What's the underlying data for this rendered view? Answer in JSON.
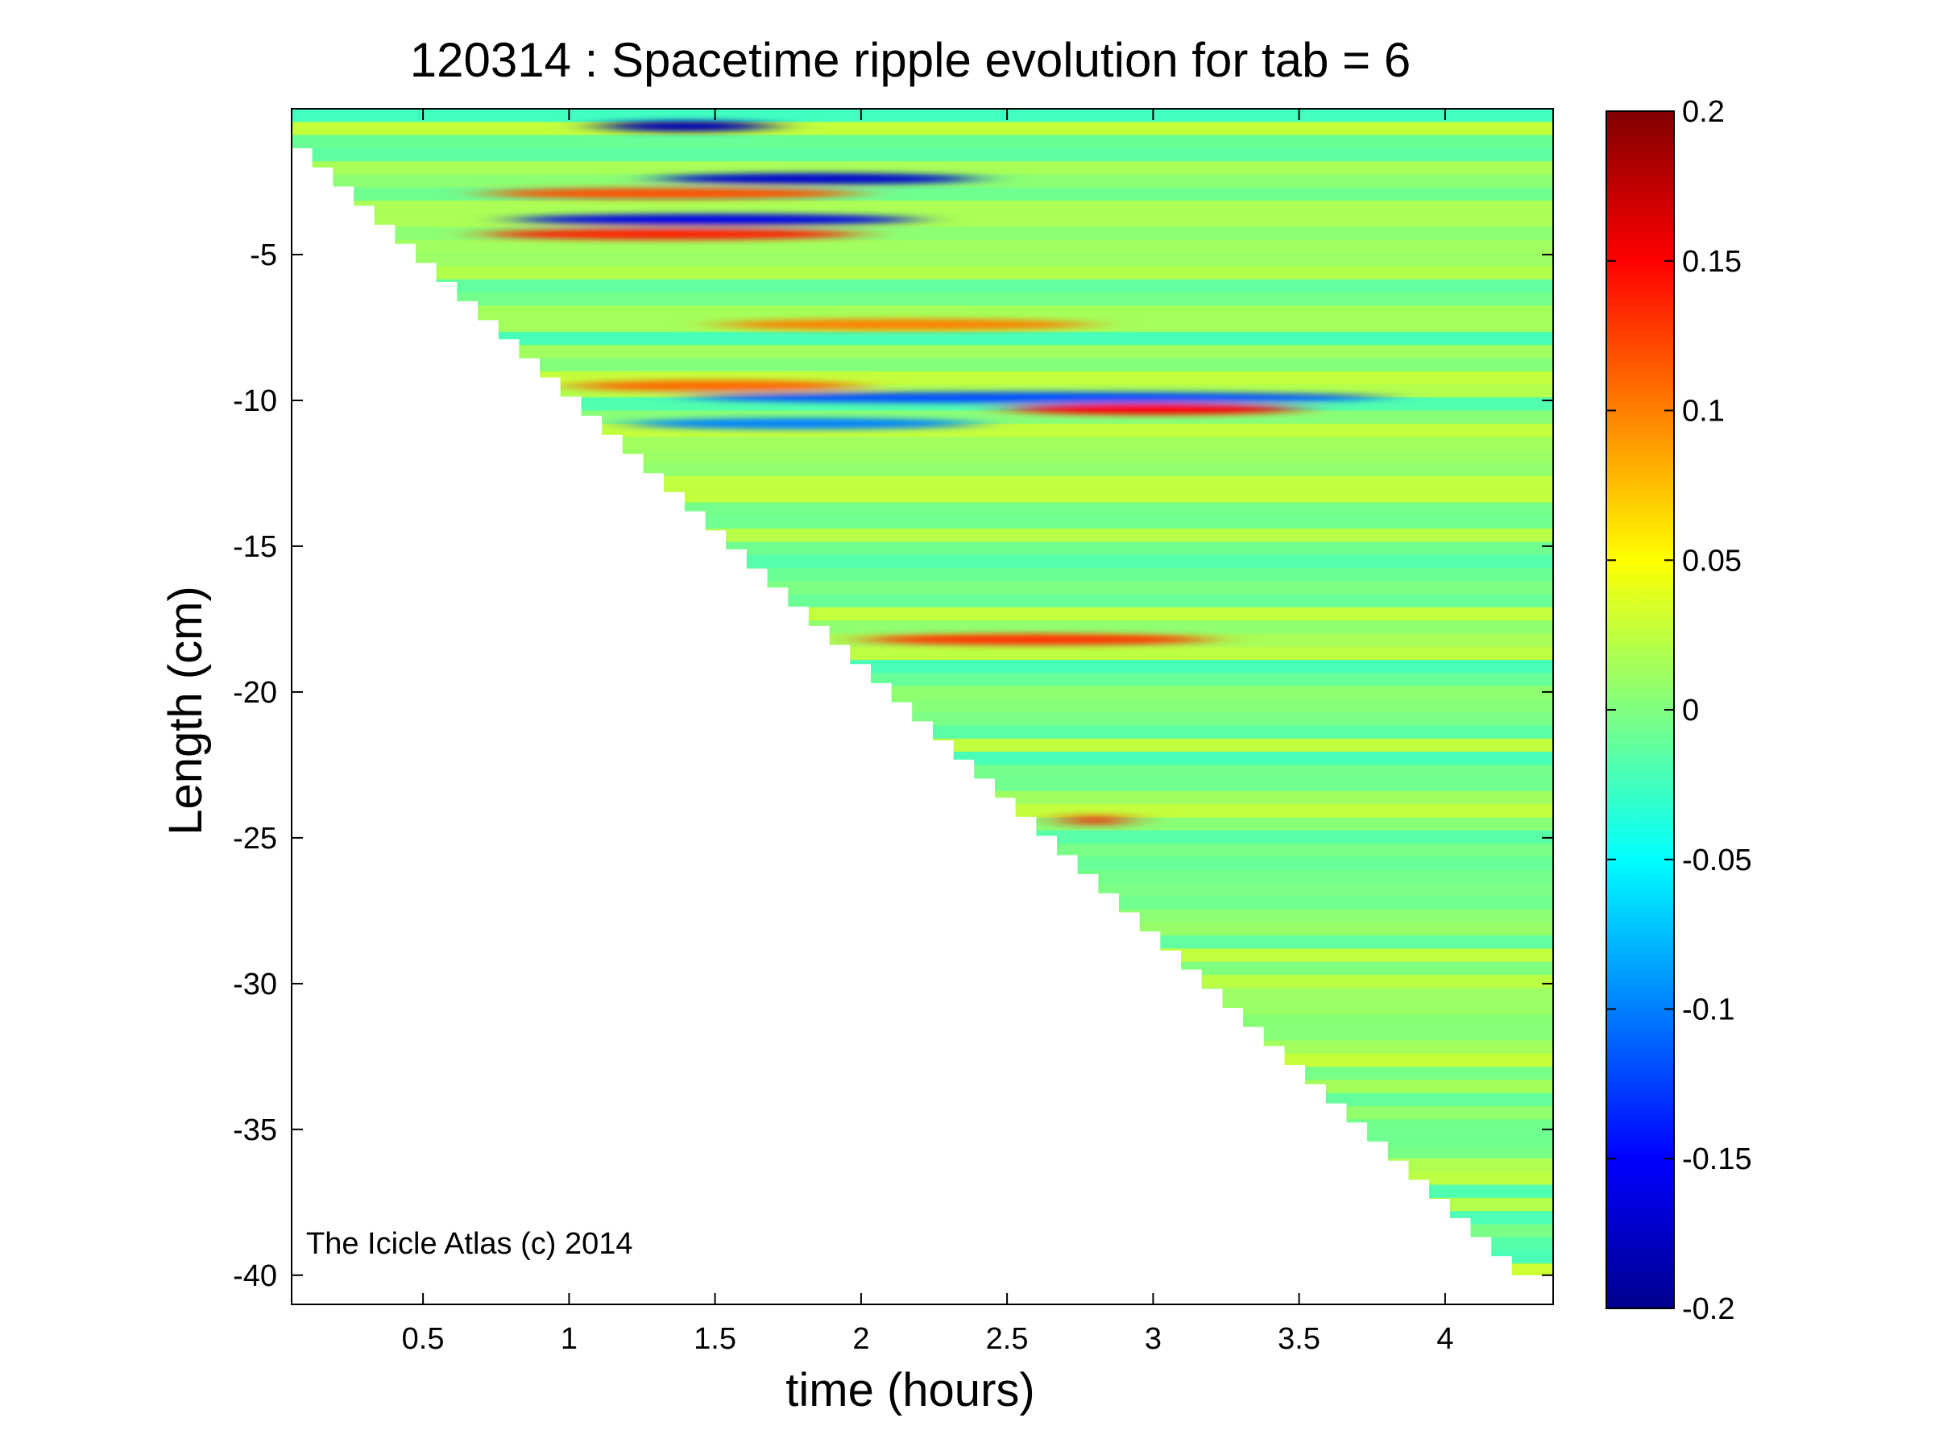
{
  "chart_data": {
    "type": "heatmap",
    "title": "120314 : Spacetime ripple evolution for tab = 6",
    "xlabel": "time (hours)",
    "ylabel": "Length (cm)",
    "xlim": [
      0.05,
      4.37
    ],
    "ylim": [
      -41,
      0
    ],
    "xticks": [
      0.5,
      1,
      1.5,
      2,
      2.5,
      3,
      3.5,
      4
    ],
    "xtick_labels": [
      "0.5",
      "1",
      "1.5",
      "2",
      "2.5",
      "3",
      "3.5",
      "4"
    ],
    "yticks": [
      -5,
      -10,
      -15,
      -20,
      -25,
      -30,
      -35,
      -40
    ],
    "ytick_labels": [
      "-5",
      "-10",
      "-15",
      "-20",
      "-25",
      "-30",
      "-35",
      "-40"
    ],
    "colormap": "jet",
    "clim": [
      -0.2,
      0.2
    ],
    "colorbar_ticks": [
      0.2,
      0.15,
      0.1,
      0.05,
      0,
      -0.05,
      -0.1,
      -0.15,
      -0.2
    ],
    "colorbar_tick_labels": [
      "0.2",
      "0.15",
      "0.1",
      "0.05",
      "0",
      "-0.05",
      "-0.1",
      "-0.15",
      "-0.2"
    ],
    "data_boundary": [
      {
        "time": 0.05,
        "length": -0.7
      },
      {
        "time": 4.3,
        "length": -40.0
      }
    ],
    "features": [
      {
        "time_range": [
          1.1,
          1.7
        ],
        "length": -0.6,
        "value": -0.18
      },
      {
        "time_range": [
          1.3,
          2.4
        ],
        "length": -2.4,
        "value": -0.17
      },
      {
        "time_range": [
          0.7,
          2.0
        ],
        "length": -2.9,
        "value": 0.12
      },
      {
        "time_range": [
          0.8,
          2.2
        ],
        "length": -3.8,
        "value": -0.16
      },
      {
        "time_range": [
          0.7,
          2.0
        ],
        "length": -4.3,
        "value": 0.14
      },
      {
        "time_range": [
          1.5,
          2.8
        ],
        "length": -7.4,
        "value": 0.1
      },
      {
        "time_range": [
          1.0,
          2.0
        ],
        "length": -9.5,
        "value": 0.11
      },
      {
        "time_range": [
          1.4,
          3.8
        ],
        "length": -9.9,
        "value": -0.12
      },
      {
        "time_range": [
          2.5,
          3.5
        ],
        "length": -10.3,
        "value": 0.15
      },
      {
        "time_range": [
          1.2,
          2.4
        ],
        "length": -10.8,
        "value": -0.1
      },
      {
        "time_range": [
          2.0,
          3.2
        ],
        "length": -18.2,
        "value": 0.13
      },
      {
        "time_range": [
          2.7,
          2.9
        ],
        "length": -24.4,
        "value": 0.14
      }
    ],
    "grid": false,
    "colorbar_position": "right"
  },
  "annotation": "The Icicle Atlas (c) 2014"
}
